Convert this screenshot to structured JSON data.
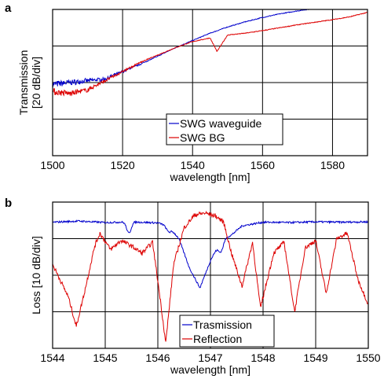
{
  "chart_data": [
    {
      "panel": "a",
      "type": "line",
      "xlabel": "wavelength [nm]",
      "ylabel": "Transmission [20 dB/div]",
      "xlim": [
        1500,
        1590
      ],
      "xticks": [
        1500,
        1520,
        1540,
        1560,
        1580
      ],
      "ylim": [
        0,
        4
      ],
      "y_divisions": 4,
      "grid": true,
      "legend_position": "bottom-right",
      "series": [
        {
          "name": "SWG waveguide",
          "color": "#0000cc",
          "x": [
            1500,
            1505,
            1510,
            1515,
            1520,
            1525,
            1530,
            1535,
            1540,
            1545,
            1550,
            1555,
            1560,
            1565,
            1570,
            1575,
            1580,
            1585,
            1590
          ],
          "y": [
            1.95,
            2.0,
            2.05,
            2.1,
            2.3,
            2.5,
            2.72,
            2.95,
            3.15,
            3.35,
            3.52,
            3.66,
            3.78,
            3.88,
            3.96,
            4.03,
            4.08,
            4.12,
            4.15
          ]
        },
        {
          "name": "SWG BG",
          "color": "#dd0000",
          "x": [
            1500,
            1505,
            1510,
            1515,
            1520,
            1525,
            1530,
            1535,
            1540,
            1545,
            1547,
            1550,
            1555,
            1560,
            1565,
            1570,
            1575,
            1580,
            1585,
            1590
          ],
          "y": [
            1.75,
            1.7,
            1.8,
            2.05,
            2.3,
            2.55,
            2.75,
            2.95,
            3.12,
            3.22,
            2.85,
            3.3,
            3.35,
            3.42,
            3.5,
            3.58,
            3.65,
            3.72,
            3.8,
            3.92
          ]
        }
      ]
    },
    {
      "panel": "b",
      "type": "line",
      "xlabel": "wavelength [nm]",
      "ylabel": "Loss [10 dB/div]",
      "xlim": [
        1544,
        1550
      ],
      "xticks": [
        1544,
        1545,
        1546,
        1547,
        1548,
        1549,
        1550
      ],
      "ylim": [
        0,
        4
      ],
      "y_divisions": 4,
      "grid": true,
      "legend_position": "bottom-right",
      "series": [
        {
          "name": "Trasmission",
          "color": "#0000cc",
          "x": [
            1544,
            1544.5,
            1545,
            1545.5,
            1546,
            1546.2,
            1546.4,
            1546.6,
            1546.8,
            1547.0,
            1547.2,
            1547.4,
            1547.6,
            1548,
            1548.5,
            1549,
            1549.5,
            1550
          ],
          "y": [
            3.45,
            3.48,
            3.44,
            3.46,
            3.43,
            3.35,
            3.0,
            2.2,
            1.65,
            2.4,
            2.95,
            3.1,
            3.35,
            3.45,
            3.44,
            3.46,
            3.45,
            3.46
          ],
          "dips": [
            [
              1545.45,
              3.15
            ],
            [
              1546.2,
              3.2
            ],
            [
              1547.2,
              2.65
            ]
          ]
        },
        {
          "name": "Reflection",
          "color": "#dd0000",
          "x": [
            1544,
            1544.1,
            1544.3,
            1544.45,
            1544.6,
            1544.8,
            1544.9,
            1545.1,
            1545.3,
            1545.5,
            1545.7,
            1545.9,
            1546.05,
            1546.15,
            1546.3,
            1546.5,
            1546.7,
            1546.9,
            1547.1,
            1547.25,
            1547.4,
            1547.6,
            1547.8,
            1547.95,
            1548.2,
            1548.4,
            1548.6,
            1548.8,
            1549.0,
            1549.2,
            1549.4,
            1549.6,
            1549.8,
            1550
          ],
          "y": [
            2.3,
            2.0,
            1.4,
            0.6,
            1.5,
            2.8,
            3.15,
            2.7,
            2.95,
            2.8,
            2.6,
            2.9,
            1.3,
            0.15,
            2.3,
            3.3,
            3.65,
            3.7,
            3.62,
            3.45,
            2.6,
            1.7,
            2.9,
            1.1,
            2.6,
            2.9,
            1.0,
            2.75,
            2.95,
            1.5,
            3.0,
            3.15,
            1.9,
            1.2
          ]
        }
      ]
    }
  ]
}
